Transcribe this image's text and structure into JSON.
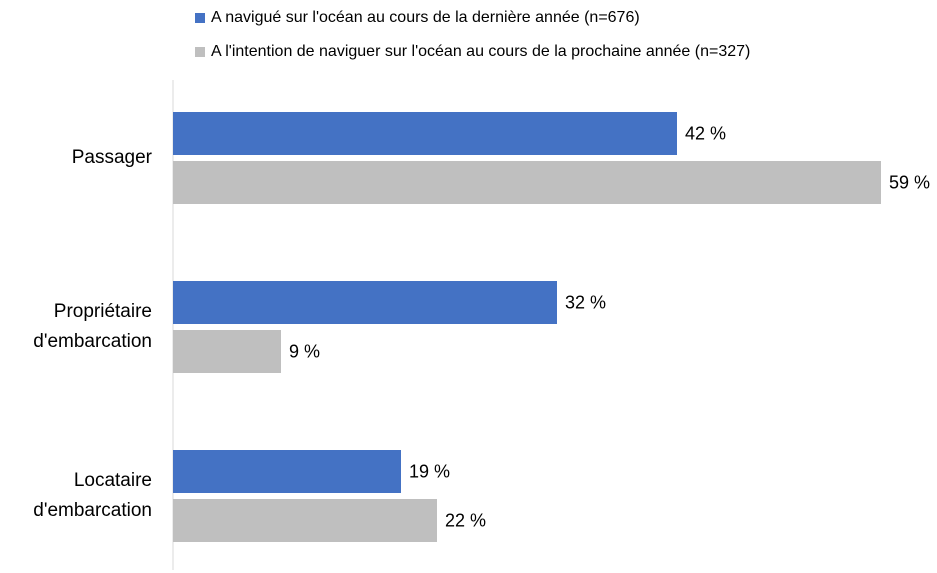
{
  "chart_data": {
    "type": "hbar",
    "categories": [
      "Passager",
      "Propriétaire d'embarcation",
      "Locataire d'embarcation"
    ],
    "series": [
      {
        "name": "A navigué sur l'océan au cours de la dernière année (n=676)",
        "color": "#4472c4",
        "values": [
          42,
          32,
          19
        ],
        "value_labels": [
          "42 %",
          "32 %",
          "19 %"
        ]
      },
      {
        "name": "A l'intention de naviguer sur l'océan au cours de la prochaine année (n=327)",
        "color": "#bfbfbf",
        "values": [
          59,
          9,
          22
        ],
        "value_labels": [
          "59 %",
          "9 %",
          "22 %"
        ]
      }
    ],
    "xlim": [
      0,
      60
    ],
    "legend": "top"
  }
}
